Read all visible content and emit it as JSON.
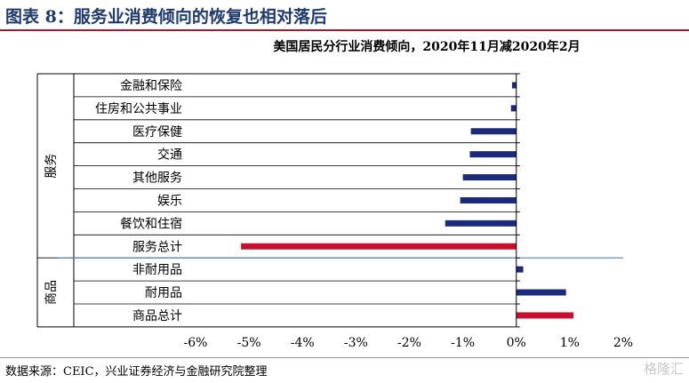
{
  "figure_title": "图表 8：服务业消费倾向的恢复也相对落后",
  "source_note": "数据来源：CEIC，兴业证券经济与金融研究院整理",
  "watermark": "格隆汇",
  "colors": {
    "navy": "#1b2a7a",
    "red": "#c8102e",
    "divider": "#4f81bd",
    "title": "#1f3a6e"
  },
  "chart_data": {
    "type": "bar",
    "orientation": "horizontal",
    "title": "美国居民分行业消费倾向，2020年11月减2020年2月",
    "groups": [
      {
        "name": "服务",
        "categories": [
          "金融和保险",
          "住房和公共事业",
          "医疗保健",
          "交通",
          "其他服务",
          "娱乐",
          "餐饮和住宿",
          "服务总计"
        ]
      },
      {
        "name": "商品",
        "categories": [
          "非耐用品",
          "耐用品",
          "商品总计"
        ]
      }
    ],
    "categories": [
      "金融和保险",
      "住房和公共事业",
      "医疗保健",
      "交通",
      "其他服务",
      "娱乐",
      "餐饮和住宿",
      "服务总计",
      "非耐用品",
      "耐用品",
      "商品总计"
    ],
    "values": [
      -0.08,
      -0.1,
      -0.85,
      -0.87,
      -1.0,
      -1.05,
      -1.33,
      -5.15,
      0.13,
      0.93,
      1.07
    ],
    "bar_colors": [
      "navy",
      "navy",
      "navy",
      "navy",
      "navy",
      "navy",
      "navy",
      "red",
      "navy",
      "navy",
      "red"
    ],
    "x_ticks": [
      "-6%",
      "-5%",
      "-4%",
      "-3%",
      "-2%",
      "-1%",
      "0%",
      "1%",
      "2%"
    ],
    "xlim": [
      -6,
      2
    ],
    "unit": "%",
    "grid": false
  }
}
